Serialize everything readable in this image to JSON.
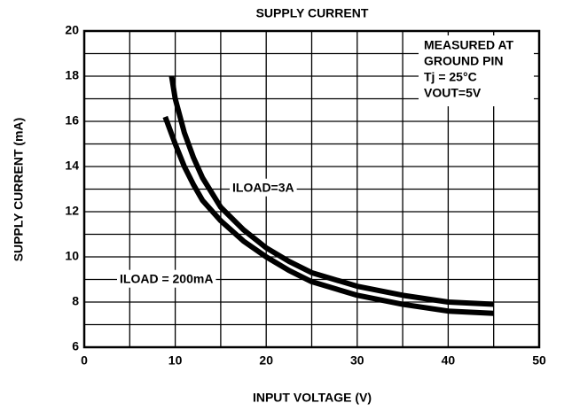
{
  "chart_data": {
    "type": "line",
    "title": "SUPPLY CURRENT",
    "x_label": "INPUT VOLTAGE (V)",
    "y_label": "SUPPLY CURRENT (mA)",
    "note": [
      "MEASURED AT",
      "GROUND PIN",
      "Tj = 25°C",
      "VOUT=5V"
    ],
    "xlim": [
      0,
      50
    ],
    "xticks": [
      0,
      10,
      20,
      30,
      40,
      50
    ],
    "ylim": [
      6,
      20
    ],
    "yticks": [
      6,
      8,
      10,
      12,
      14,
      16,
      18,
      20
    ],
    "xgrid": [
      5,
      10,
      15,
      20,
      25,
      30,
      35,
      40,
      45
    ],
    "ygrid": [
      7,
      8,
      9,
      10,
      11,
      12,
      13,
      14,
      15,
      16,
      17,
      18,
      19
    ],
    "grid": true,
    "series": [
      {
        "name": "ILOAD=3A",
        "color": "#000000",
        "x": [
          9.6,
          10,
          11,
          12,
          13,
          15,
          17.5,
          20,
          22.5,
          25,
          30,
          35,
          40,
          45
        ],
        "values": [
          18,
          17,
          15.5,
          14.4,
          13.5,
          12.2,
          11.2,
          10.4,
          9.8,
          9.3,
          8.7,
          8.3,
          8.0,
          7.9
        ]
      },
      {
        "name": "ILOAD = 200mA",
        "color": "#000000",
        "x": [
          8.9,
          10,
          11,
          12,
          13,
          15,
          17.5,
          20,
          22.5,
          25,
          30,
          35,
          40,
          45
        ],
        "values": [
          16.2,
          15,
          14,
          13.2,
          12.5,
          11.6,
          10.7,
          10,
          9.4,
          8.9,
          8.3,
          7.9,
          7.6,
          7.5
        ]
      }
    ]
  }
}
